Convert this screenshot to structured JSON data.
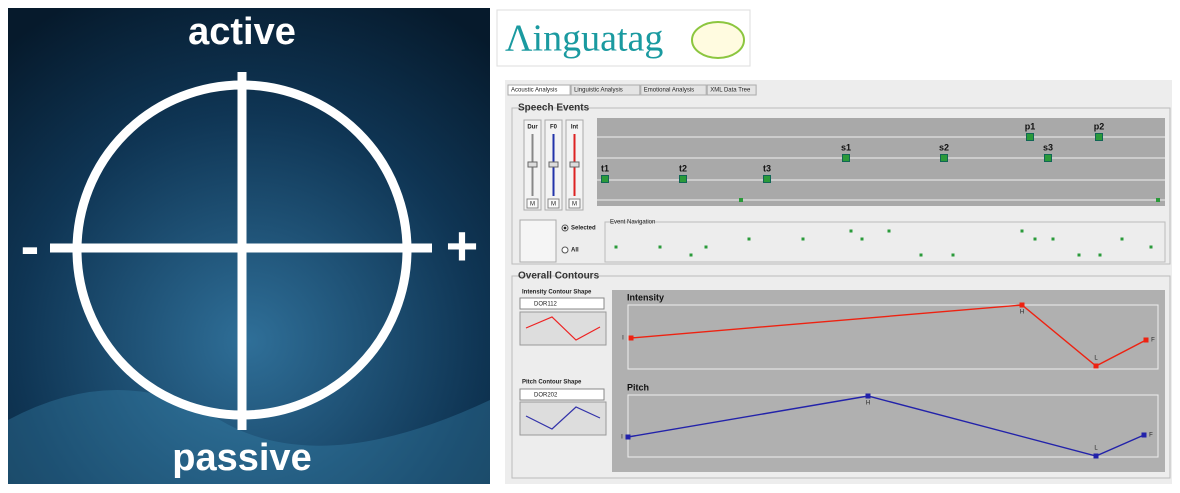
{
  "left_panel": {
    "top": "active",
    "bottom": "passive",
    "left": "-",
    "right": "+"
  },
  "app": {
    "logo": "Λinguatag",
    "tabs": [
      "Acoustic Analysis",
      "Linguistic Analysis",
      "Emotional Analysis",
      "XML Data Tree"
    ],
    "speech_events": {
      "title": "Speech Events",
      "sliders": [
        "Dur",
        "F0",
        "Int"
      ],
      "slider_buttons": [
        "M",
        "M",
        "M"
      ],
      "events": [
        "t1",
        "t2",
        "t3",
        "s1",
        "s2",
        "s3",
        "p1",
        "p2"
      ],
      "selected": "Selected",
      "all": "All",
      "navigation": "Event Navigation"
    },
    "overall_contours": {
      "title": "Overall Contours",
      "intensity_shape": "Intensity Contour Shape",
      "intensity_code": "DOR112",
      "pitch_shape": "Pitch Contour Shape",
      "pitch_code": "DOR202",
      "intensity": "Intensity",
      "pitch": "Pitch",
      "intensity_points": [
        "I",
        "H",
        "L",
        "F"
      ],
      "pitch_points": [
        "I",
        "H",
        "L",
        "F"
      ]
    }
  }
}
